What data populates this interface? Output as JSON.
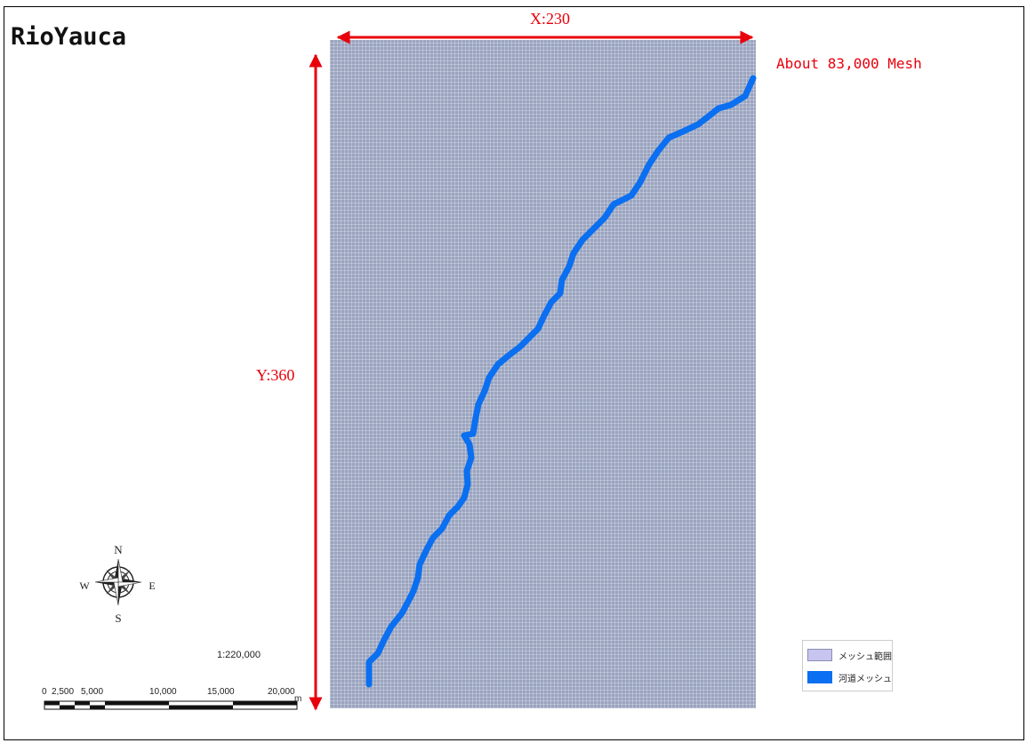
{
  "map": {
    "title": "RioYauca",
    "width_label": "X:230",
    "height_label": "Y:360",
    "mesh_count_label": "About 83,000 Mesh",
    "scale_ratio": "1:220,000"
  },
  "compass": {
    "north": "N",
    "south": "S",
    "east": "E",
    "west": "W"
  },
  "scalebar": {
    "ticks": [
      "0",
      "2,500",
      "5,000",
      "10,000",
      "15,000",
      "20,000"
    ],
    "unit": "m"
  },
  "legend": {
    "items": [
      {
        "label": "メッシュ範囲",
        "color": "#c8c4f0"
      },
      {
        "label": "河道メッシュ",
        "color": "#0a6ff0"
      }
    ]
  },
  "colors": {
    "mesh": "#9aa4bf",
    "river": "#0a6ff0",
    "annotation": "#e8000b"
  }
}
